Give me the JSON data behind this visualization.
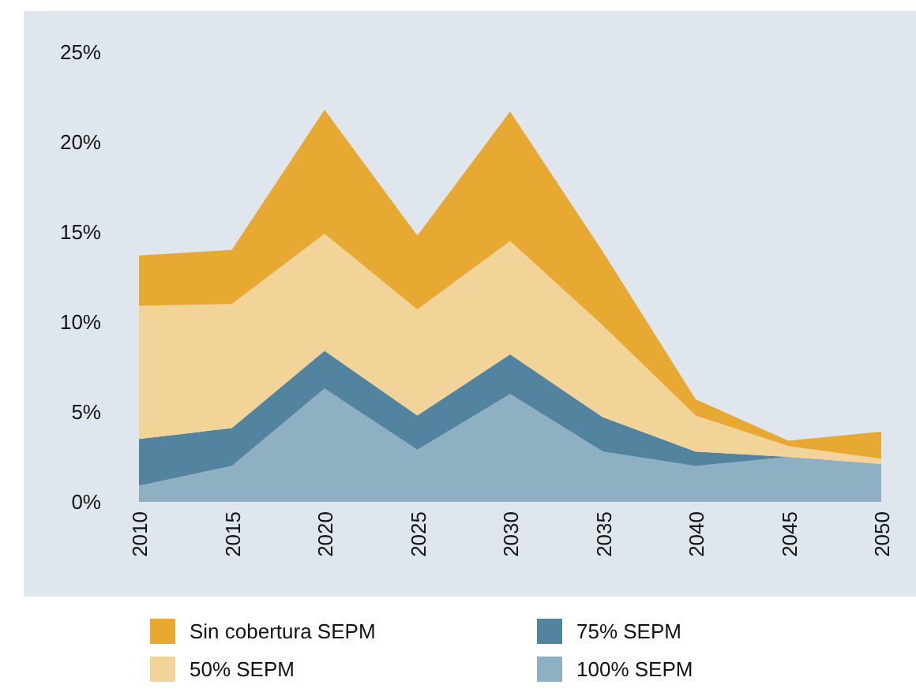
{
  "chart_data": {
    "type": "area",
    "stacked": true,
    "categories": [
      "2010",
      "2015",
      "2020",
      "2025",
      "2030",
      "2035",
      "2040",
      "2045",
      "2050"
    ],
    "series": [
      {
        "name": "100% SEPM",
        "color": "#8fafc2",
        "values": [
          0.9,
          2.0,
          6.3,
          2.9,
          6.0,
          2.8,
          2.0,
          2.5,
          2.1
        ]
      },
      {
        "name": "75% SEPM",
        "color": "#52849f",
        "values": [
          2.6,
          2.1,
          2.1,
          1.9,
          2.2,
          1.9,
          0.8,
          0.0,
          0.0
        ]
      },
      {
        "name": "50% SEPM",
        "color": "#f2d398",
        "values": [
          7.4,
          6.9,
          6.5,
          5.9,
          6.3,
          5.1,
          2.0,
          0.6,
          0.3
        ]
      },
      {
        "name": "Sin cobertura SEPM",
        "color": "#e8a933",
        "values": [
          2.8,
          3.0,
          6.9,
          4.1,
          7.2,
          4.1,
          0.9,
          0.3,
          1.5
        ]
      }
    ],
    "ylim": [
      0,
      25
    ],
    "yticks": [
      {
        "value": 0,
        "label": "0%"
      },
      {
        "value": 5,
        "label": "5%"
      },
      {
        "value": 10,
        "label": "10%"
      },
      {
        "value": 15,
        "label": "15%"
      },
      {
        "value": 20,
        "label": "20%"
      },
      {
        "value": 25,
        "label": "25%"
      }
    ],
    "grid": false,
    "legend": "bottom"
  }
}
